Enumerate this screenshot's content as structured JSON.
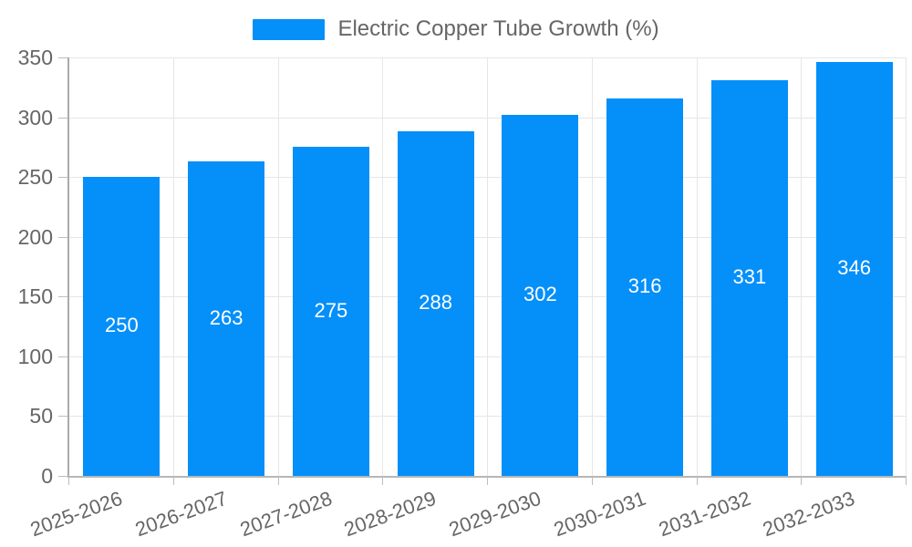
{
  "chart_data": {
    "type": "bar",
    "series_name": "Electric Copper Tube Growth (%)",
    "categories": [
      "2025-2026",
      "2026-2027",
      "2027-2028",
      "2028-2029",
      "2029-2030",
      "2030-2031",
      "2031-2032",
      "2032-2033"
    ],
    "values": [
      250,
      263,
      275,
      288,
      302,
      316,
      331,
      346
    ],
    "data_labels": [
      "250",
      "263",
      "275",
      "288",
      "302",
      "316",
      "331",
      "346"
    ],
    "ytick_labels": [
      "0",
      "50",
      "100",
      "150",
      "200",
      "250",
      "300",
      "350"
    ],
    "ylim": [
      0,
      350
    ],
    "ytick_step": 50,
    "grid": true,
    "legend_position": "top",
    "xlabel": "",
    "ylabel": "",
    "label_rotation_deg": -20,
    "colors": {
      "bar": "#058ff9",
      "grid": "#e6e6e6",
      "axis": "#b0b0b0",
      "tick_text": "#666666",
      "legend_text": "#666666",
      "data_label_text": "#ffffff",
      "background": "#ffffff"
    }
  }
}
